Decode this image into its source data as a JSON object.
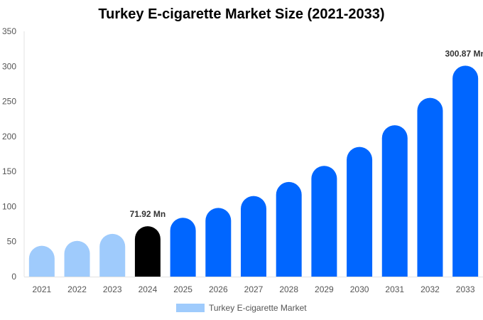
{
  "chart_data": {
    "type": "bar",
    "title": "Turkey E-cigarette Market Size (2021-2033)",
    "xlabel": "",
    "ylabel": "",
    "categories": [
      "2021",
      "2022",
      "2023",
      "2024",
      "2025",
      "2026",
      "2027",
      "2028",
      "2029",
      "2030",
      "2031",
      "2032",
      "2033"
    ],
    "series": [
      {
        "name": "Turkey E-cigarette Market",
        "values": [
          44,
          51,
          61,
          71.92,
          84,
          98,
          115,
          135,
          158,
          185,
          216,
          255,
          300.87
        ]
      }
    ],
    "ylim": [
      0,
      350
    ],
    "yticks": [
      0,
      50,
      100,
      150,
      200,
      250,
      300,
      350
    ],
    "data_labels": [
      {
        "category": "2024",
        "text": "71.92 Mn"
      },
      {
        "category": "2033",
        "text": "300.87 Mn"
      }
    ],
    "colors": {
      "historical": "#9fcbfc",
      "base_year": "#000000",
      "forecast": "#0066ff",
      "legend": "#9fcbfc"
    },
    "historical_categories": [
      "2021",
      "2022",
      "2023"
    ],
    "base_year_category": "2024",
    "grid": false,
    "legend_position": "bottom"
  }
}
